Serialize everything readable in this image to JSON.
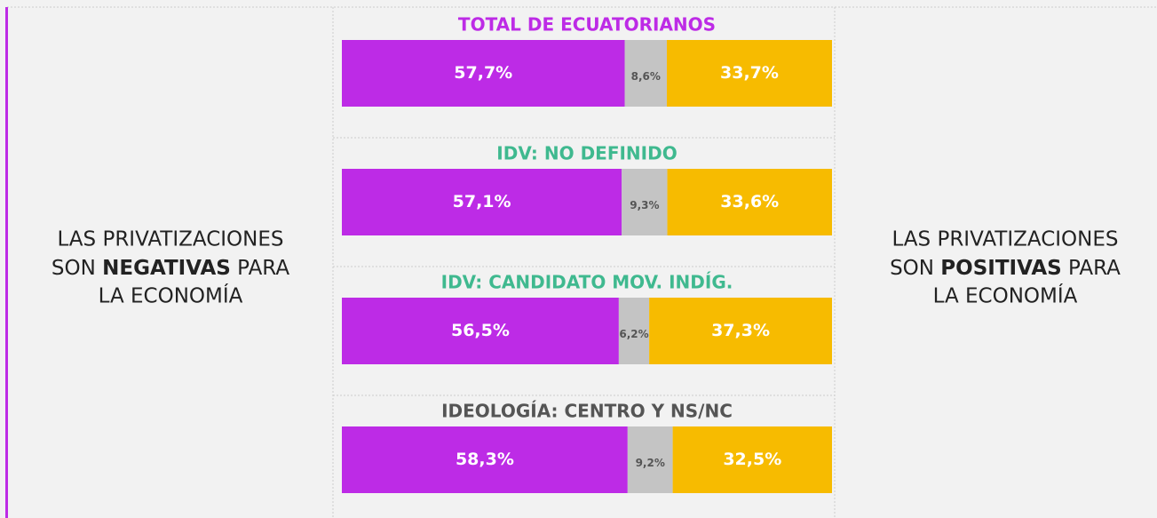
{
  "left_label": {
    "line1": "LAS PRIVATIZACIONES",
    "line2_start": "SON",
    "line2_bold": "NEGATIVAS",
    "line2_end": "PARA",
    "line3": "LA ECONOMÍA"
  },
  "right_label": {
    "line1": "LAS PRIVATIZACIONES",
    "line2_start": "SON",
    "line2_bold": "POSITIVAS",
    "line2_end": "PARA",
    "line3": "LA ECONOMÍA"
  },
  "chart_data": [
    {
      "type": "stacked-hbar",
      "title": "TOTAL DE ECUATORIANOS",
      "title_color": "#bd2be6",
      "values": [
        57.7,
        8.6,
        33.7
      ],
      "value_labels": [
        "57,7%",
        "8,6%",
        "33,7%"
      ],
      "colors": [
        "#bd2be6",
        "#c4c4c4",
        "#f7bb00"
      ],
      "xlim": [
        0,
        100
      ]
    },
    {
      "type": "stacked-hbar",
      "title": "IDV: NO DEFINIDO",
      "title_color": "#3fb98f",
      "values": [
        57.1,
        9.3,
        33.6
      ],
      "value_labels": [
        "57,1%",
        "9,3%",
        "33,6%"
      ],
      "colors": [
        "#bd2be6",
        "#c4c4c4",
        "#f7bb00"
      ],
      "xlim": [
        0,
        100
      ]
    },
    {
      "type": "stacked-hbar",
      "title": "IDV: CANDIDATO MOV. INDÍG.",
      "title_color": "#3fb98f",
      "values": [
        56.5,
        6.2,
        37.3
      ],
      "value_labels": [
        "56,5%",
        "6,2%",
        "37,3%"
      ],
      "colors": [
        "#bd2be6",
        "#c4c4c4",
        "#f7bb00"
      ],
      "xlim": [
        0,
        100
      ]
    },
    {
      "type": "stacked-hbar",
      "title": "IDEOLOGÍA: CENTRO Y NS/NC",
      "title_color": "#555555",
      "values": [
        58.3,
        9.2,
        32.5
      ],
      "value_labels": [
        "58,3%",
        "9,2%",
        "32,5%"
      ],
      "colors": [
        "#bd2be6",
        "#c4c4c4",
        "#f7bb00"
      ],
      "xlim": [
        0,
        100
      ]
    }
  ]
}
